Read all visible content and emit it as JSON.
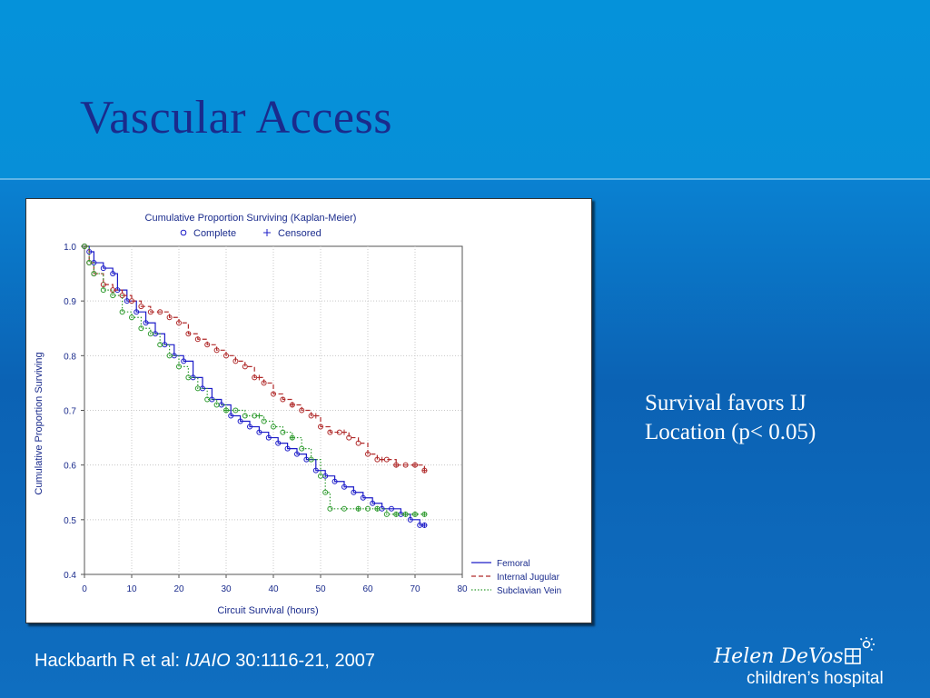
{
  "slide": {
    "title": "Vascular Access",
    "note_lines": [
      "Survival favors IJ",
      "Location (p< 0.05)"
    ],
    "citation": {
      "prefix": "Hackbarth R et al: ",
      "journal": "IJAIO",
      "suffix": " 30:1116-21, 2007"
    },
    "logo": {
      "line1": "Helen DeVos",
      "line2": "children’s hospital",
      "icon": "house-with-sun-icon"
    }
  },
  "colors": {
    "background": "#0b6cc0",
    "title": "#1a2b8c",
    "femoral": "#1c1cc8",
    "internal_jugular": "#b02a2a",
    "subclavian": "#2e9a2e"
  },
  "chart_data": {
    "type": "line",
    "title": "Cumulative Proportion Surviving (Kaplan-Meier)",
    "marker_legend": [
      {
        "label": "Complete",
        "marker": "circle"
      },
      {
        "label": "Censored",
        "marker": "plus"
      }
    ],
    "xlabel": "Circuit Survival (hours)",
    "ylabel": "Cumulative Proportion Surviving",
    "xlim": [
      0,
      80
    ],
    "ylim": [
      0.4,
      1.0
    ],
    "xticks": [
      0,
      10,
      20,
      30,
      40,
      50,
      60,
      70,
      80
    ],
    "yticks": [
      1.0,
      0.9,
      0.8,
      0.7,
      0.6,
      0.5,
      0.4
    ],
    "ytick_labels": [
      "1.0",
      "0.9",
      "0.8",
      "0.7",
      "0.6",
      "0.5",
      "0.4"
    ],
    "grid": true,
    "legend_position": "bottom-right",
    "series": [
      {
        "name": "Femoral",
        "style": "solid",
        "color": "#1c1cc8",
        "x": [
          0,
          1,
          2,
          4,
          6,
          7,
          9,
          11,
          13,
          15,
          17,
          19,
          21,
          23,
          25,
          27,
          29,
          31,
          33,
          35,
          37,
          39,
          41,
          43,
          45,
          47,
          49,
          51,
          53,
          55,
          57,
          59,
          61,
          63,
          65,
          67,
          69,
          71,
          72
        ],
        "y": [
          1.0,
          0.99,
          0.97,
          0.96,
          0.95,
          0.92,
          0.9,
          0.88,
          0.86,
          0.84,
          0.82,
          0.8,
          0.79,
          0.76,
          0.74,
          0.72,
          0.71,
          0.69,
          0.68,
          0.67,
          0.66,
          0.65,
          0.64,
          0.63,
          0.62,
          0.61,
          0.59,
          0.58,
          0.57,
          0.56,
          0.55,
          0.54,
          0.53,
          0.52,
          0.52,
          0.51,
          0.5,
          0.49,
          0.49
        ],
        "censored_x": [
          72
        ]
      },
      {
        "name": "Internal Jugular",
        "style": "dashed",
        "color": "#b02a2a",
        "x": [
          0,
          1,
          2,
          4,
          6,
          8,
          10,
          12,
          14,
          16,
          18,
          20,
          22,
          24,
          26,
          28,
          30,
          32,
          34,
          36,
          38,
          40,
          42,
          44,
          46,
          48,
          50,
          52,
          54,
          56,
          58,
          60,
          62,
          64,
          66,
          68,
          70,
          72
        ],
        "y": [
          1.0,
          0.97,
          0.95,
          0.93,
          0.92,
          0.91,
          0.9,
          0.89,
          0.88,
          0.88,
          0.87,
          0.86,
          0.84,
          0.83,
          0.82,
          0.81,
          0.8,
          0.79,
          0.78,
          0.76,
          0.75,
          0.73,
          0.72,
          0.71,
          0.7,
          0.69,
          0.67,
          0.66,
          0.66,
          0.65,
          0.64,
          0.62,
          0.61,
          0.61,
          0.6,
          0.6,
          0.6,
          0.59
        ],
        "censored_x": [
          37,
          44,
          49,
          55,
          63,
          66,
          70,
          72
        ]
      },
      {
        "name": "Subclavian Vein",
        "style": "dotted",
        "color": "#2e9a2e",
        "x": [
          0,
          1,
          2,
          4,
          6,
          8,
          10,
          12,
          14,
          16,
          18,
          20,
          22,
          24,
          26,
          28,
          30,
          32,
          34,
          36,
          38,
          40,
          42,
          44,
          46,
          48,
          50,
          51,
          52,
          55,
          58,
          60,
          62,
          64,
          66,
          68,
          70,
          72
        ],
        "y": [
          1.0,
          0.97,
          0.95,
          0.92,
          0.91,
          0.88,
          0.87,
          0.85,
          0.84,
          0.82,
          0.8,
          0.78,
          0.76,
          0.74,
          0.72,
          0.71,
          0.7,
          0.7,
          0.69,
          0.69,
          0.68,
          0.67,
          0.66,
          0.65,
          0.63,
          0.61,
          0.58,
          0.55,
          0.52,
          0.52,
          0.52,
          0.52,
          0.52,
          0.51,
          0.51,
          0.51,
          0.51,
          0.51
        ],
        "censored_x": [
          30,
          37,
          44,
          58,
          62,
          66,
          68,
          70,
          72
        ]
      }
    ]
  }
}
